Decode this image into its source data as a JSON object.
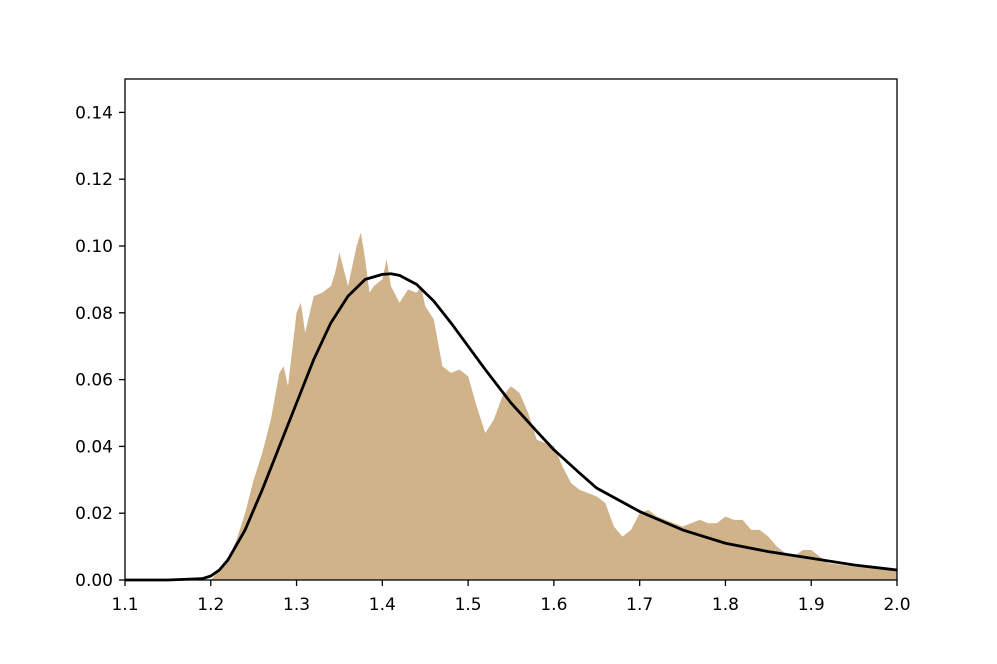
{
  "chart_data": {
    "type": "area",
    "title": "",
    "xlabel": "",
    "ylabel": "",
    "xlim": [
      1.1,
      2.0
    ],
    "ylim": [
      0.0,
      0.15
    ],
    "grid": false,
    "legend": "none",
    "x_ticks": [
      "1.1",
      "1.2",
      "1.3",
      "1.4",
      "1.5",
      "1.6",
      "1.7",
      "1.8",
      "1.9",
      "2.0"
    ],
    "y_ticks": [
      "0.00",
      "0.02",
      "0.04",
      "0.06",
      "0.08",
      "0.10",
      "0.12",
      "0.14"
    ],
    "series": [
      {
        "kind": "histogram",
        "color": "#d2b48c",
        "x": [
          1.1,
          1.2,
          1.21,
          1.22,
          1.23,
          1.24,
          1.25,
          1.26,
          1.27,
          1.28,
          1.285,
          1.29,
          1.3,
          1.305,
          1.31,
          1.32,
          1.33,
          1.34,
          1.345,
          1.35,
          1.36,
          1.37,
          1.375,
          1.38,
          1.385,
          1.39,
          1.4,
          1.405,
          1.41,
          1.42,
          1.43,
          1.44,
          1.445,
          1.45,
          1.46,
          1.47,
          1.48,
          1.49,
          1.5,
          1.51,
          1.52,
          1.53,
          1.54,
          1.55,
          1.56,
          1.57,
          1.58,
          1.59,
          1.6,
          1.61,
          1.62,
          1.63,
          1.64,
          1.65,
          1.66,
          1.67,
          1.68,
          1.69,
          1.7,
          1.71,
          1.72,
          1.73,
          1.74,
          1.75,
          1.76,
          1.77,
          1.78,
          1.79,
          1.8,
          1.81,
          1.82,
          1.83,
          1.84,
          1.85,
          1.86,
          1.87,
          1.88,
          1.89,
          1.9,
          1.91,
          1.92,
          1.95,
          2.0
        ],
        "y": [
          0.0,
          0.0,
          0.003,
          0.006,
          0.012,
          0.02,
          0.03,
          0.038,
          0.048,
          0.062,
          0.064,
          0.058,
          0.08,
          0.083,
          0.074,
          0.085,
          0.086,
          0.088,
          0.092,
          0.098,
          0.088,
          0.1,
          0.104,
          0.096,
          0.086,
          0.088,
          0.09,
          0.096,
          0.088,
          0.083,
          0.087,
          0.086,
          0.088,
          0.082,
          0.078,
          0.064,
          0.062,
          0.063,
          0.061,
          0.052,
          0.044,
          0.048,
          0.055,
          0.058,
          0.056,
          0.05,
          0.042,
          0.041,
          0.04,
          0.034,
          0.029,
          0.027,
          0.026,
          0.025,
          0.023,
          0.016,
          0.013,
          0.015,
          0.02,
          0.021,
          0.019,
          0.018,
          0.017,
          0.016,
          0.017,
          0.018,
          0.017,
          0.017,
          0.019,
          0.018,
          0.018,
          0.015,
          0.015,
          0.013,
          0.01,
          0.008,
          0.007,
          0.009,
          0.009,
          0.007,
          0.005,
          0.004,
          0.003
        ]
      },
      {
        "kind": "fit-curve",
        "color": "#000000",
        "x": [
          1.1,
          1.15,
          1.19,
          1.2,
          1.21,
          1.22,
          1.24,
          1.26,
          1.28,
          1.3,
          1.32,
          1.34,
          1.36,
          1.38,
          1.4,
          1.41,
          1.42,
          1.44,
          1.46,
          1.48,
          1.5,
          1.52,
          1.55,
          1.58,
          1.6,
          1.63,
          1.65,
          1.7,
          1.75,
          1.8,
          1.85,
          1.9,
          1.95,
          2.0
        ],
        "y": [
          0.0,
          0.0,
          0.0004,
          0.0012,
          0.003,
          0.006,
          0.015,
          0.027,
          0.04,
          0.053,
          0.066,
          0.077,
          0.085,
          0.09,
          0.0915,
          0.0917,
          0.0912,
          0.0885,
          0.0835,
          0.077,
          0.07,
          0.063,
          0.053,
          0.0445,
          0.039,
          0.032,
          0.0275,
          0.0205,
          0.015,
          0.011,
          0.0085,
          0.0065,
          0.0045,
          0.003
        ]
      }
    ]
  }
}
